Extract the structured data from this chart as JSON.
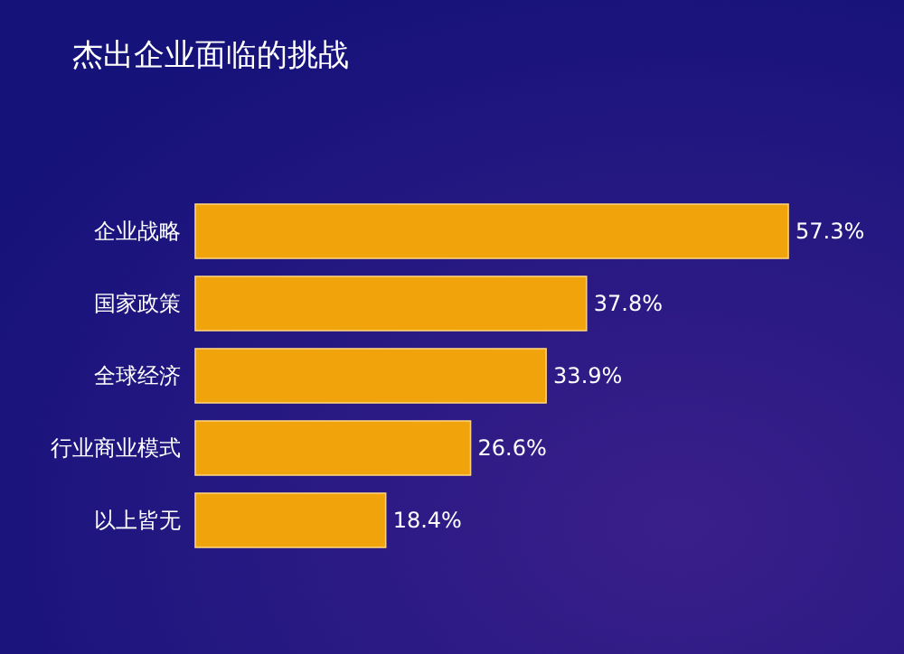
{
  "chart_data": {
    "type": "bar",
    "orientation": "horizontal",
    "title": "杰出企业面临的挑战",
    "categories": [
      "企业战略",
      "国家政策",
      "全球经济",
      "行业商业模式",
      "以上皆无"
    ],
    "values": [
      57.3,
      37.8,
      33.9,
      26.6,
      18.4
    ],
    "value_labels": [
      "57.3%",
      "37.8%",
      "33.9%",
      "26.6%",
      "18.4%"
    ],
    "color": "#f0a30a"
  }
}
